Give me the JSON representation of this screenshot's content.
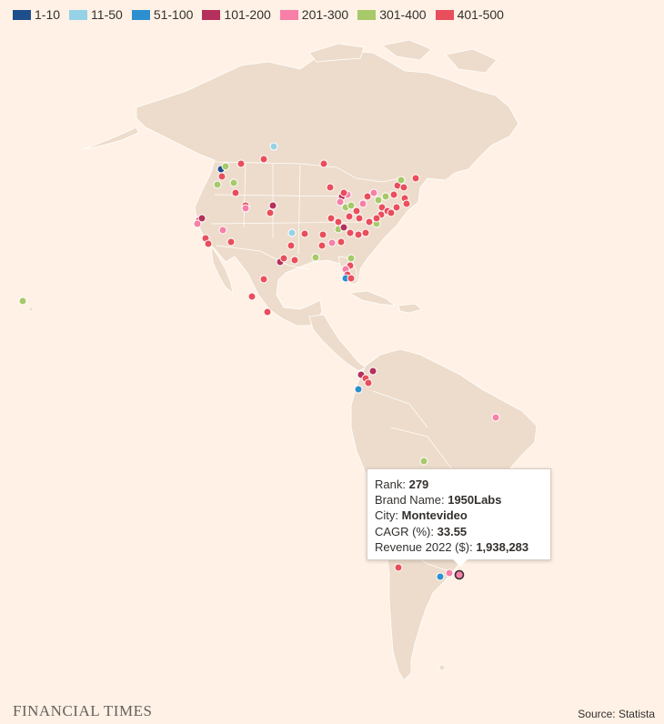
{
  "legend": [
    {
      "label": "1-10",
      "color": "#1f4e8c"
    },
    {
      "label": "11-50",
      "color": "#96d2e6"
    },
    {
      "label": "51-100",
      "color": "#2e8fd0"
    },
    {
      "label": "101-200",
      "color": "#b5305c"
    },
    {
      "label": "201-300",
      "color": "#f77fa8"
    },
    {
      "label": "301-400",
      "color": "#a7c96a"
    },
    {
      "label": "401-500",
      "color": "#e94e5c"
    }
  ],
  "colors": {
    "background": "#fff1e5",
    "land": "#eddccb",
    "borders": "#ffffff"
  },
  "tooltip": {
    "rank_label": "Rank:",
    "rank_value": "279",
    "brand_label": "Brand Name:",
    "brand_value": "1950Labs",
    "city_label": "City:",
    "city_value": "Montevideo",
    "cagr_label": "CAGR (%):",
    "cagr_value": "33.55",
    "revenue_label": "Revenue 2022 ($):",
    "revenue_value": "1,938,283"
  },
  "footer": {
    "brand": "FINANCIAL TIMES",
    "source": "Source: Statista"
  }
}
